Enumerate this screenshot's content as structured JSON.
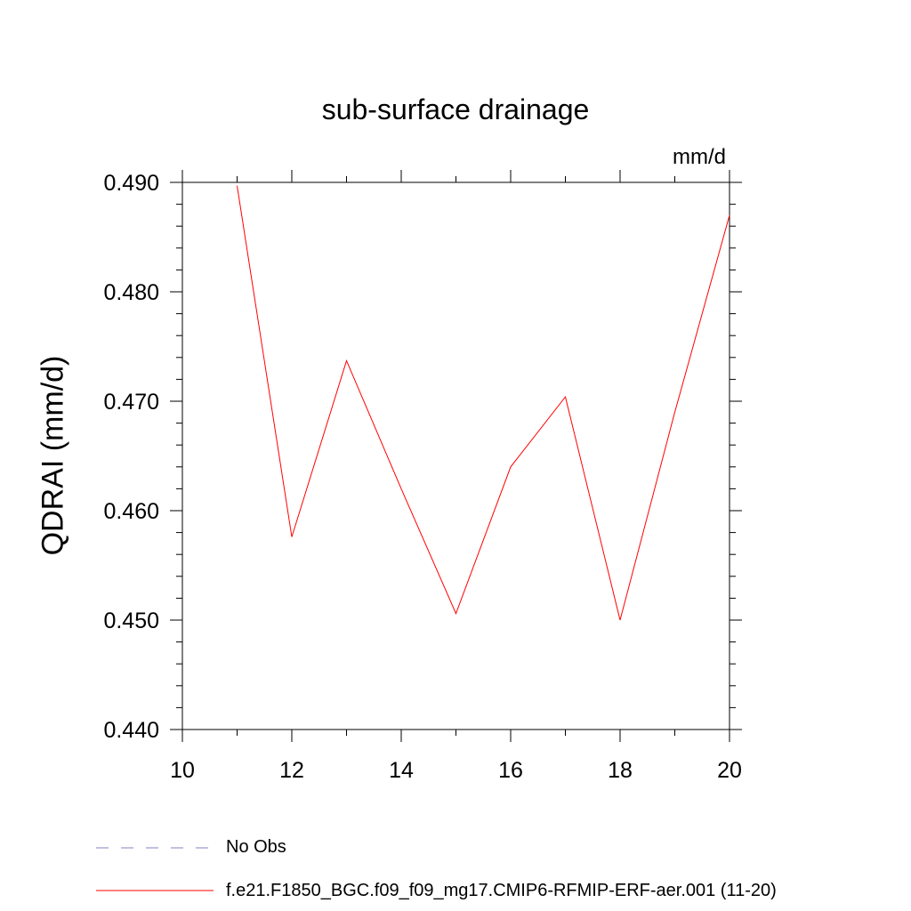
{
  "chart_data": {
    "type": "line",
    "title": "sub-surface drainage",
    "units_label": "mm/d",
    "ylabel": "QDRAI  (mm/d)",
    "xlabel": "",
    "xlim": [
      10,
      20
    ],
    "ylim": [
      0.44,
      0.49
    ],
    "xticks": [
      "10",
      "12",
      "14",
      "16",
      "18",
      "20"
    ],
    "yticks": [
      "0.440",
      "0.450",
      "0.460",
      "0.470",
      "0.480",
      "0.490"
    ],
    "grid": false,
    "legend_position": "bottom",
    "series": [
      {
        "name": "f.e21.F1850_BGC.f09_f09_mg17.CMIP6-RFMIP-ERF-aer.001 (11-20)",
        "color": "#ff0000",
        "style": "solid",
        "x": [
          11,
          12,
          13,
          14,
          15,
          16,
          17,
          18,
          19,
          20
        ],
        "values": [
          0.4897,
          0.4576,
          0.4737,
          0.462,
          0.4506,
          0.464,
          0.4704,
          0.45,
          0.469,
          0.487
        ]
      }
    ],
    "legend": [
      {
        "label": "No Obs",
        "color": "#8080c0",
        "style": "dashed"
      },
      {
        "label": "f.e21.F1850_BGC.f09_f09_mg17.CMIP6-RFMIP-ERF-aer.001 (11-20)",
        "color": "#ff0000",
        "style": "solid"
      }
    ]
  }
}
